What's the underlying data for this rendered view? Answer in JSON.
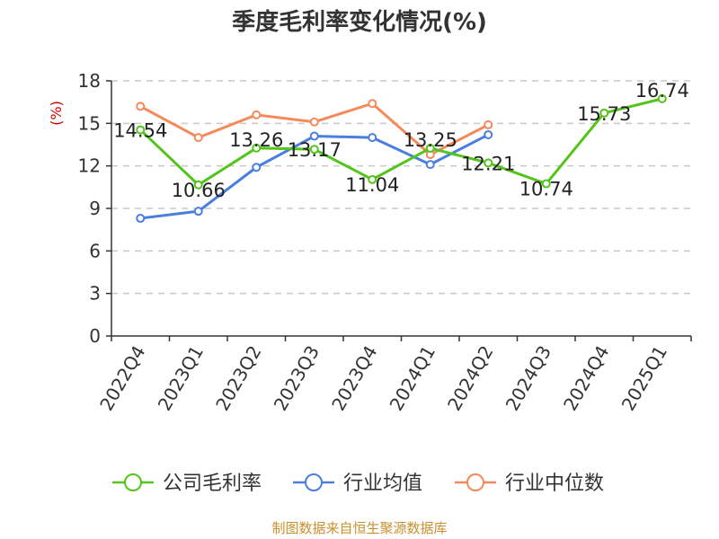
{
  "chart_data": {
    "type": "line",
    "title": "季度毛利率变化情况(%)",
    "ylabel": "(%)",
    "xlabel": "",
    "ylim": [
      0,
      18
    ],
    "yticks": [
      0,
      3,
      6,
      9,
      12,
      15,
      18
    ],
    "grid": true,
    "legend_position": "bottom",
    "categories": [
      "2022Q4",
      "2023Q1",
      "2023Q2",
      "2023Q3",
      "2023Q4",
      "2024Q1",
      "2024Q2",
      "2024Q3",
      "2024Q4",
      "2025Q1"
    ],
    "series": [
      {
        "name": "公司毛利率",
        "color": "#52c41a",
        "values": [
          14.54,
          10.66,
          13.26,
          13.17,
          11.04,
          13.25,
          12.21,
          10.74,
          15.73,
          16.74
        ],
        "labels": [
          "14.54",
          "10.66",
          "13.26",
          "13.17",
          "11.04",
          "13.25",
          "12.21",
          "10.74",
          "15.73",
          "16.74"
        ]
      },
      {
        "name": "行业均值",
        "color": "#4a7fe0",
        "values": [
          8.3,
          8.8,
          11.9,
          14.1,
          14.0,
          12.1,
          14.2,
          null,
          null,
          null
        ]
      },
      {
        "name": "行业中位数",
        "color": "#f5895a",
        "values": [
          16.2,
          14.0,
          15.6,
          15.1,
          16.4,
          12.8,
          14.9,
          null,
          null,
          null
        ]
      }
    ]
  },
  "footer": {
    "source": "制图数据来自恒生聚源数据库"
  },
  "colors": {
    "grid": "#c8c8c8",
    "axis": "#333333",
    "title": "#333333",
    "ylabel": "#cc0000",
    "source": "#c8902e"
  }
}
